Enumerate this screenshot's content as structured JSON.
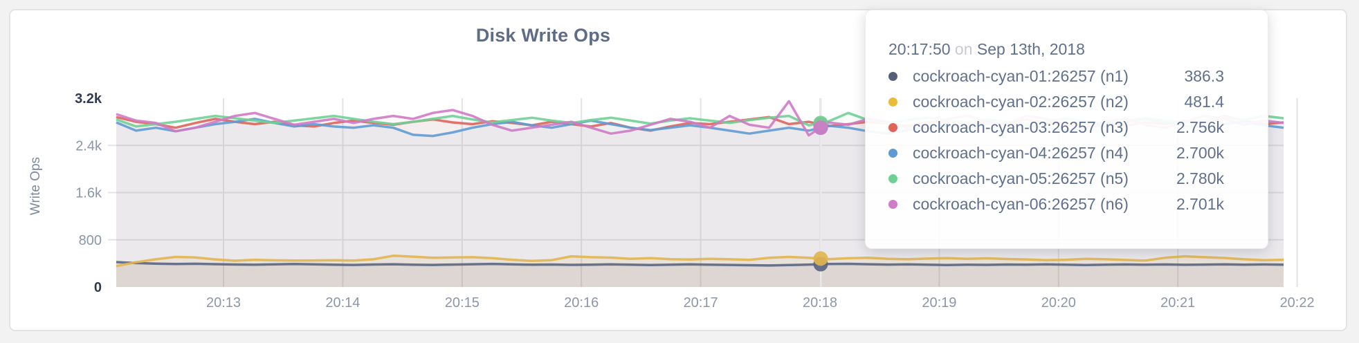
{
  "chart": {
    "title": "Disk Write Ops",
    "ylabel": "Write Ops"
  },
  "chart_data": {
    "type": "line",
    "title": "Disk Write Ops",
    "ylabel": "Write Ops",
    "xlabel": "",
    "ylim": [
      0,
      3200
    ],
    "grid": true,
    "legend_position": "tooltip-only",
    "x_tick_labels": [
      "20:13",
      "20:14",
      "20:15",
      "20:16",
      "20:17",
      "20:18",
      "20:19",
      "20:20",
      "20:21",
      "20:22"
    ],
    "y_ticks": [
      {
        "label": "3.2k",
        "value": 3200,
        "emphasis": true
      },
      {
        "label": "2.4k",
        "value": 2400,
        "emphasis": false
      },
      {
        "label": "1.6k",
        "value": 1600,
        "emphasis": false
      },
      {
        "label": "800",
        "value": 800,
        "emphasis": false
      },
      {
        "label": "0",
        "value": 0,
        "emphasis": true
      }
    ],
    "sample_interval_seconds": 10,
    "series": [
      {
        "name": "cockroach-cyan-01:26257 (n1)",
        "color": "#5a6681",
        "values": [
          422,
          405,
          395,
          390,
          394,
          387,
          381,
          378,
          384,
          389,
          383,
          378,
          374,
          381,
          386,
          379,
          374,
          380,
          386,
          391,
          383,
          377,
          381,
          375,
          379,
          385,
          378,
          372,
          377,
          383,
          379,
          374,
          369,
          365,
          371,
          380,
          390.5,
          393,
          386,
          380,
          384,
          378,
          373,
          379,
          375,
          381,
          377,
          383,
          378,
          373,
          377,
          382,
          378,
          382,
          376,
          380,
          385,
          379,
          382,
          379
        ]
      },
      {
        "name": "cockroach-cyan-02:26257 (n2)",
        "color": "#e2b54e",
        "values": [
          355,
          420,
          470,
          510,
          500,
          468,
          445,
          462,
          452,
          448,
          450,
          455,
          448,
          470,
          530,
          515,
          495,
          500,
          505,
          490,
          462,
          442,
          455,
          520,
          505,
          498,
          478,
          490,
          472,
          465,
          478,
          470,
          460,
          495,
          510,
          495,
          472.3,
          488,
          495,
          478,
          470,
          482,
          490,
          478,
          486,
          475,
          468,
          455,
          462,
          478,
          470,
          458,
          448,
          495,
          520,
          505,
          492,
          470,
          455,
          462
        ]
      },
      {
        "name": "cockroach-cyan-03:26257 (n3)",
        "color": "#e0635a",
        "values": [
          2880,
          2800,
          2760,
          2700,
          2780,
          2850,
          2800,
          2760,
          2800,
          2740,
          2720,
          2780,
          2820,
          2780,
          2750,
          2800,
          2840,
          2790,
          2760,
          2810,
          2780,
          2740,
          2800,
          2760,
          2720,
          2780,
          2700,
          2650,
          2720,
          2780,
          2760,
          2800,
          2840,
          2880,
          2760,
          2800,
          2727,
          2760,
          2800,
          2770,
          2730,
          2790,
          2820,
          2760,
          2800,
          2770,
          2840,
          2780,
          2750,
          2810,
          2770,
          2730,
          2790,
          2760,
          2820,
          2780,
          2900,
          2820,
          2760,
          2790
        ]
      },
      {
        "name": "cockroach-cyan-04:26257 (n4)",
        "color": "#5f9bd3",
        "values": [
          2790,
          2650,
          2700,
          2640,
          2700,
          2760,
          2800,
          2850,
          2780,
          2720,
          2760,
          2720,
          2700,
          2740,
          2700,
          2580,
          2560,
          2620,
          2700,
          2760,
          2800,
          2740,
          2700,
          2760,
          2820,
          2760,
          2700,
          2660,
          2700,
          2740,
          2700,
          2650,
          2600,
          2650,
          2700,
          2650,
          2733,
          2700,
          2640,
          2600,
          2660,
          2700,
          2740,
          2700,
          2760,
          2800,
          2740,
          2700,
          2660,
          2700,
          2750,
          2800,
          2850,
          2790,
          2730,
          2700,
          2760,
          2800,
          2740,
          2700
        ]
      },
      {
        "name": "cockroach-cyan-05:26257 (n5)",
        "color": "#6fd096",
        "values": [
          2840,
          2720,
          2760,
          2800,
          2850,
          2900,
          2860,
          2820,
          2780,
          2820,
          2860,
          2900,
          2850,
          2800,
          2760,
          2800,
          2850,
          2900,
          2840,
          2790,
          2830,
          2870,
          2820,
          2780,
          2830,
          2870,
          2820,
          2770,
          2820,
          2860,
          2820,
          2780,
          2830,
          2870,
          2900,
          2740,
          2807,
          2950,
          2830,
          2780,
          2830,
          2870,
          2830,
          2790,
          2840,
          2800,
          2760,
          2810,
          2850,
          2810,
          2770,
          2820,
          2860,
          2820,
          2780,
          2830,
          2870,
          2830,
          2900,
          2860
        ]
      },
      {
        "name": "cockroach-cyan-06:26257 (n6)",
        "color": "#cf7bc5",
        "values": [
          2930,
          2820,
          2780,
          2640,
          2700,
          2800,
          2900,
          2950,
          2850,
          2750,
          2800,
          2850,
          2780,
          2850,
          2900,
          2850,
          2950,
          3000,
          2900,
          2750,
          2650,
          2700,
          2750,
          2800,
          2700,
          2600,
          2650,
          2750,
          2850,
          2800,
          2700,
          2900,
          2750,
          2700,
          3150,
          2570,
          2788,
          2750,
          2850,
          2800,
          2700,
          2750,
          2850,
          2900,
          2800,
          2750,
          2900,
          2850,
          2750,
          2700,
          2800,
          2850,
          2750,
          2700,
          2800,
          2900,
          2850,
          2750,
          2820,
          2780
        ]
      }
    ]
  },
  "tooltip": {
    "time": "20:17:50",
    "conjunction": "on",
    "date": "Sep 13th, 2018",
    "rows": [
      {
        "name": "cockroach-cyan-01:26257 (n1)",
        "value": "386.3",
        "numeric": 386.3,
        "color": "#566079"
      },
      {
        "name": "cockroach-cyan-02:26257 (n2)",
        "value": "481.4",
        "numeric": 481.4,
        "color": "#ebba38"
      },
      {
        "name": "cockroach-cyan-03:26257 (n3)",
        "value": "2.756k",
        "numeric": 2756,
        "color": "#e0635a"
      },
      {
        "name": "cockroach-cyan-04:26257 (n4)",
        "value": "2.700k",
        "numeric": 2700,
        "color": "#5f9bd3"
      },
      {
        "name": "cockroach-cyan-05:26257 (n5)",
        "value": "2.780k",
        "numeric": 2780,
        "color": "#6fd096"
      },
      {
        "name": "cockroach-cyan-06:26257 (n6)",
        "value": "2.701k",
        "numeric": 2701,
        "color": "#cf7bc5"
      }
    ]
  },
  "colors": {
    "title_text": "#5f6c87",
    "axis_tick_light": "#8c96a9",
    "axis_tick_dark": "#2f3b55",
    "gridline": "#e3e3e4",
    "hover_guideline": "#e9e9e9",
    "card_background": "#ffffff",
    "page_background": "#f2f2f3"
  }
}
